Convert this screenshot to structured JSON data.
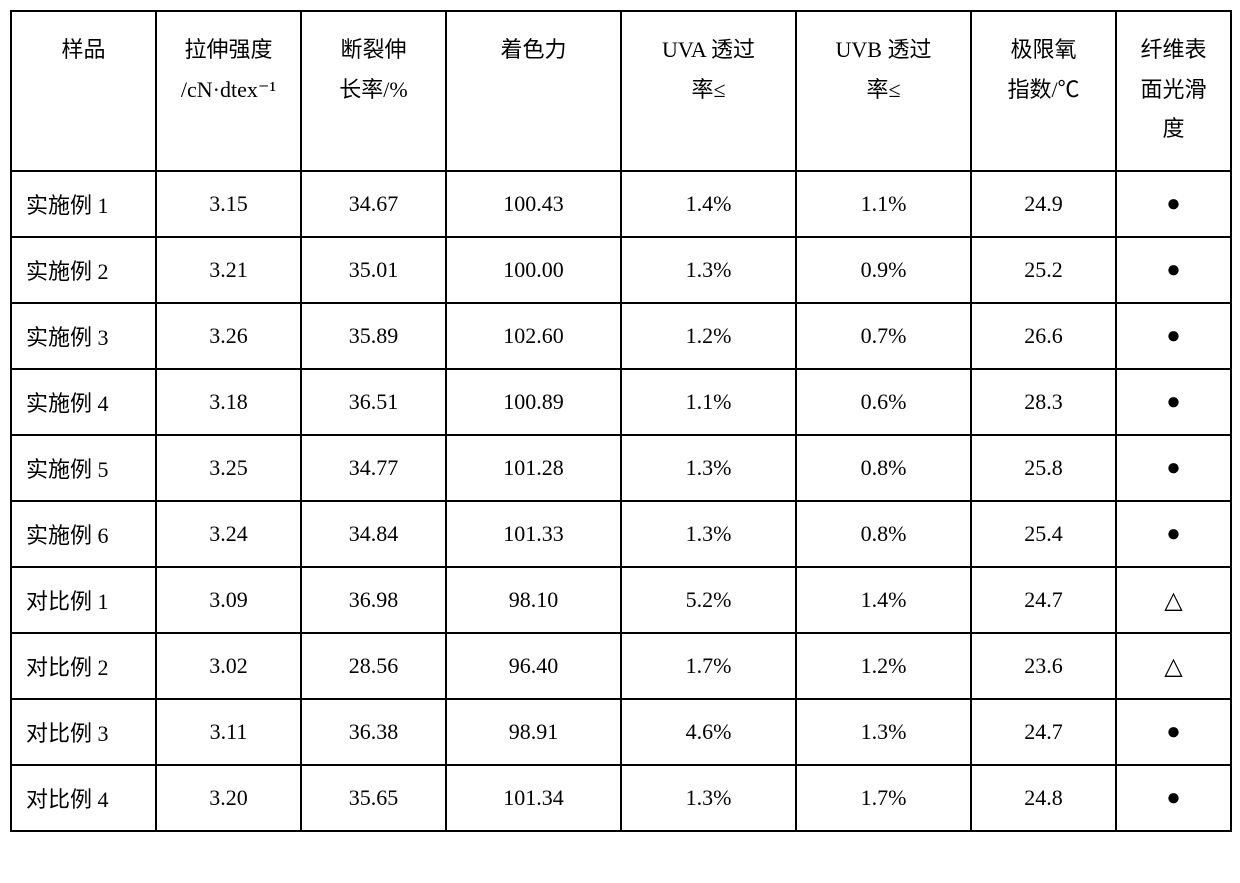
{
  "table": {
    "type": "table",
    "columns": [
      {
        "key": "sample",
        "label": "样品",
        "width": 145,
        "align": "left"
      },
      {
        "key": "tensile",
        "label_line1": "拉伸强度",
        "label_line2": "/cN·dtex⁻¹",
        "width": 145,
        "align": "center"
      },
      {
        "key": "elongation",
        "label_line1": "断裂伸",
        "label_line2": "长率/%",
        "width": 145,
        "align": "center"
      },
      {
        "key": "coloring",
        "label": "着色力",
        "width": 175,
        "align": "center"
      },
      {
        "key": "uva",
        "label_line1": "UVA 透过",
        "label_line2": "率≤",
        "width": 175,
        "align": "center"
      },
      {
        "key": "uvb",
        "label_line1": "UVB 透过",
        "label_line2": "率≤",
        "width": 175,
        "align": "center"
      },
      {
        "key": "oxygen",
        "label_line1": "极限氧",
        "label_line2": "指数/℃",
        "width": 145,
        "align": "center"
      },
      {
        "key": "smooth",
        "label_line1": "纤维表",
        "label_line2": "面光滑",
        "label_line3": "度",
        "width": 115,
        "align": "center"
      }
    ],
    "rows": [
      {
        "sample": "实施例 1",
        "tensile": "3.15",
        "elongation": "34.67",
        "coloring": "100.43",
        "uva": "1.4%",
        "uvb": "1.1%",
        "oxygen": "24.9",
        "smooth": "●"
      },
      {
        "sample": "实施例 2",
        "tensile": "3.21",
        "elongation": "35.01",
        "coloring": "100.00",
        "uva": "1.3%",
        "uvb": "0.9%",
        "oxygen": "25.2",
        "smooth": "●"
      },
      {
        "sample": "实施例 3",
        "tensile": "3.26",
        "elongation": "35.89",
        "coloring": "102.60",
        "uva": "1.2%",
        "uvb": "0.7%",
        "oxygen": "26.6",
        "smooth": "●"
      },
      {
        "sample": "实施例 4",
        "tensile": "3.18",
        "elongation": "36.51",
        "coloring": "100.89",
        "uva": "1.1%",
        "uvb": "0.6%",
        "oxygen": "28.3",
        "smooth": "●"
      },
      {
        "sample": "实施例 5",
        "tensile": "3.25",
        "elongation": "34.77",
        "coloring": "101.28",
        "uva": "1.3%",
        "uvb": "0.8%",
        "oxygen": "25.8",
        "smooth": "●"
      },
      {
        "sample": "实施例 6",
        "tensile": "3.24",
        "elongation": "34.84",
        "coloring": "101.33",
        "uva": "1.3%",
        "uvb": "0.8%",
        "oxygen": "25.4",
        "smooth": "●"
      },
      {
        "sample": "对比例 1",
        "tensile": "3.09",
        "elongation": "36.98",
        "coloring": "98.10",
        "uva": "5.2%",
        "uvb": "1.4%",
        "oxygen": "24.7",
        "smooth": "△"
      },
      {
        "sample": "对比例 2",
        "tensile": "3.02",
        "elongation": "28.56",
        "coloring": "96.40",
        "uva": "1.7%",
        "uvb": "1.2%",
        "oxygen": "23.6",
        "smooth": "△"
      },
      {
        "sample": "对比例 3",
        "tensile": "3.11",
        "elongation": "36.38",
        "coloring": "98.91",
        "uva": "4.6%",
        "uvb": "1.3%",
        "oxygen": "24.7",
        "smooth": "●"
      },
      {
        "sample": "对比例 4",
        "tensile": "3.20",
        "elongation": "35.65",
        "coloring": "101.34",
        "uva": "1.3%",
        "uvb": "1.7%",
        "oxygen": "24.8",
        "smooth": "●"
      }
    ],
    "border_color": "#000000",
    "background_color": "#ffffff",
    "text_color": "#000000",
    "header_fontsize": 22,
    "cell_fontsize": 22,
    "symbol_solid_circle": "●",
    "symbol_triangle": "△"
  }
}
